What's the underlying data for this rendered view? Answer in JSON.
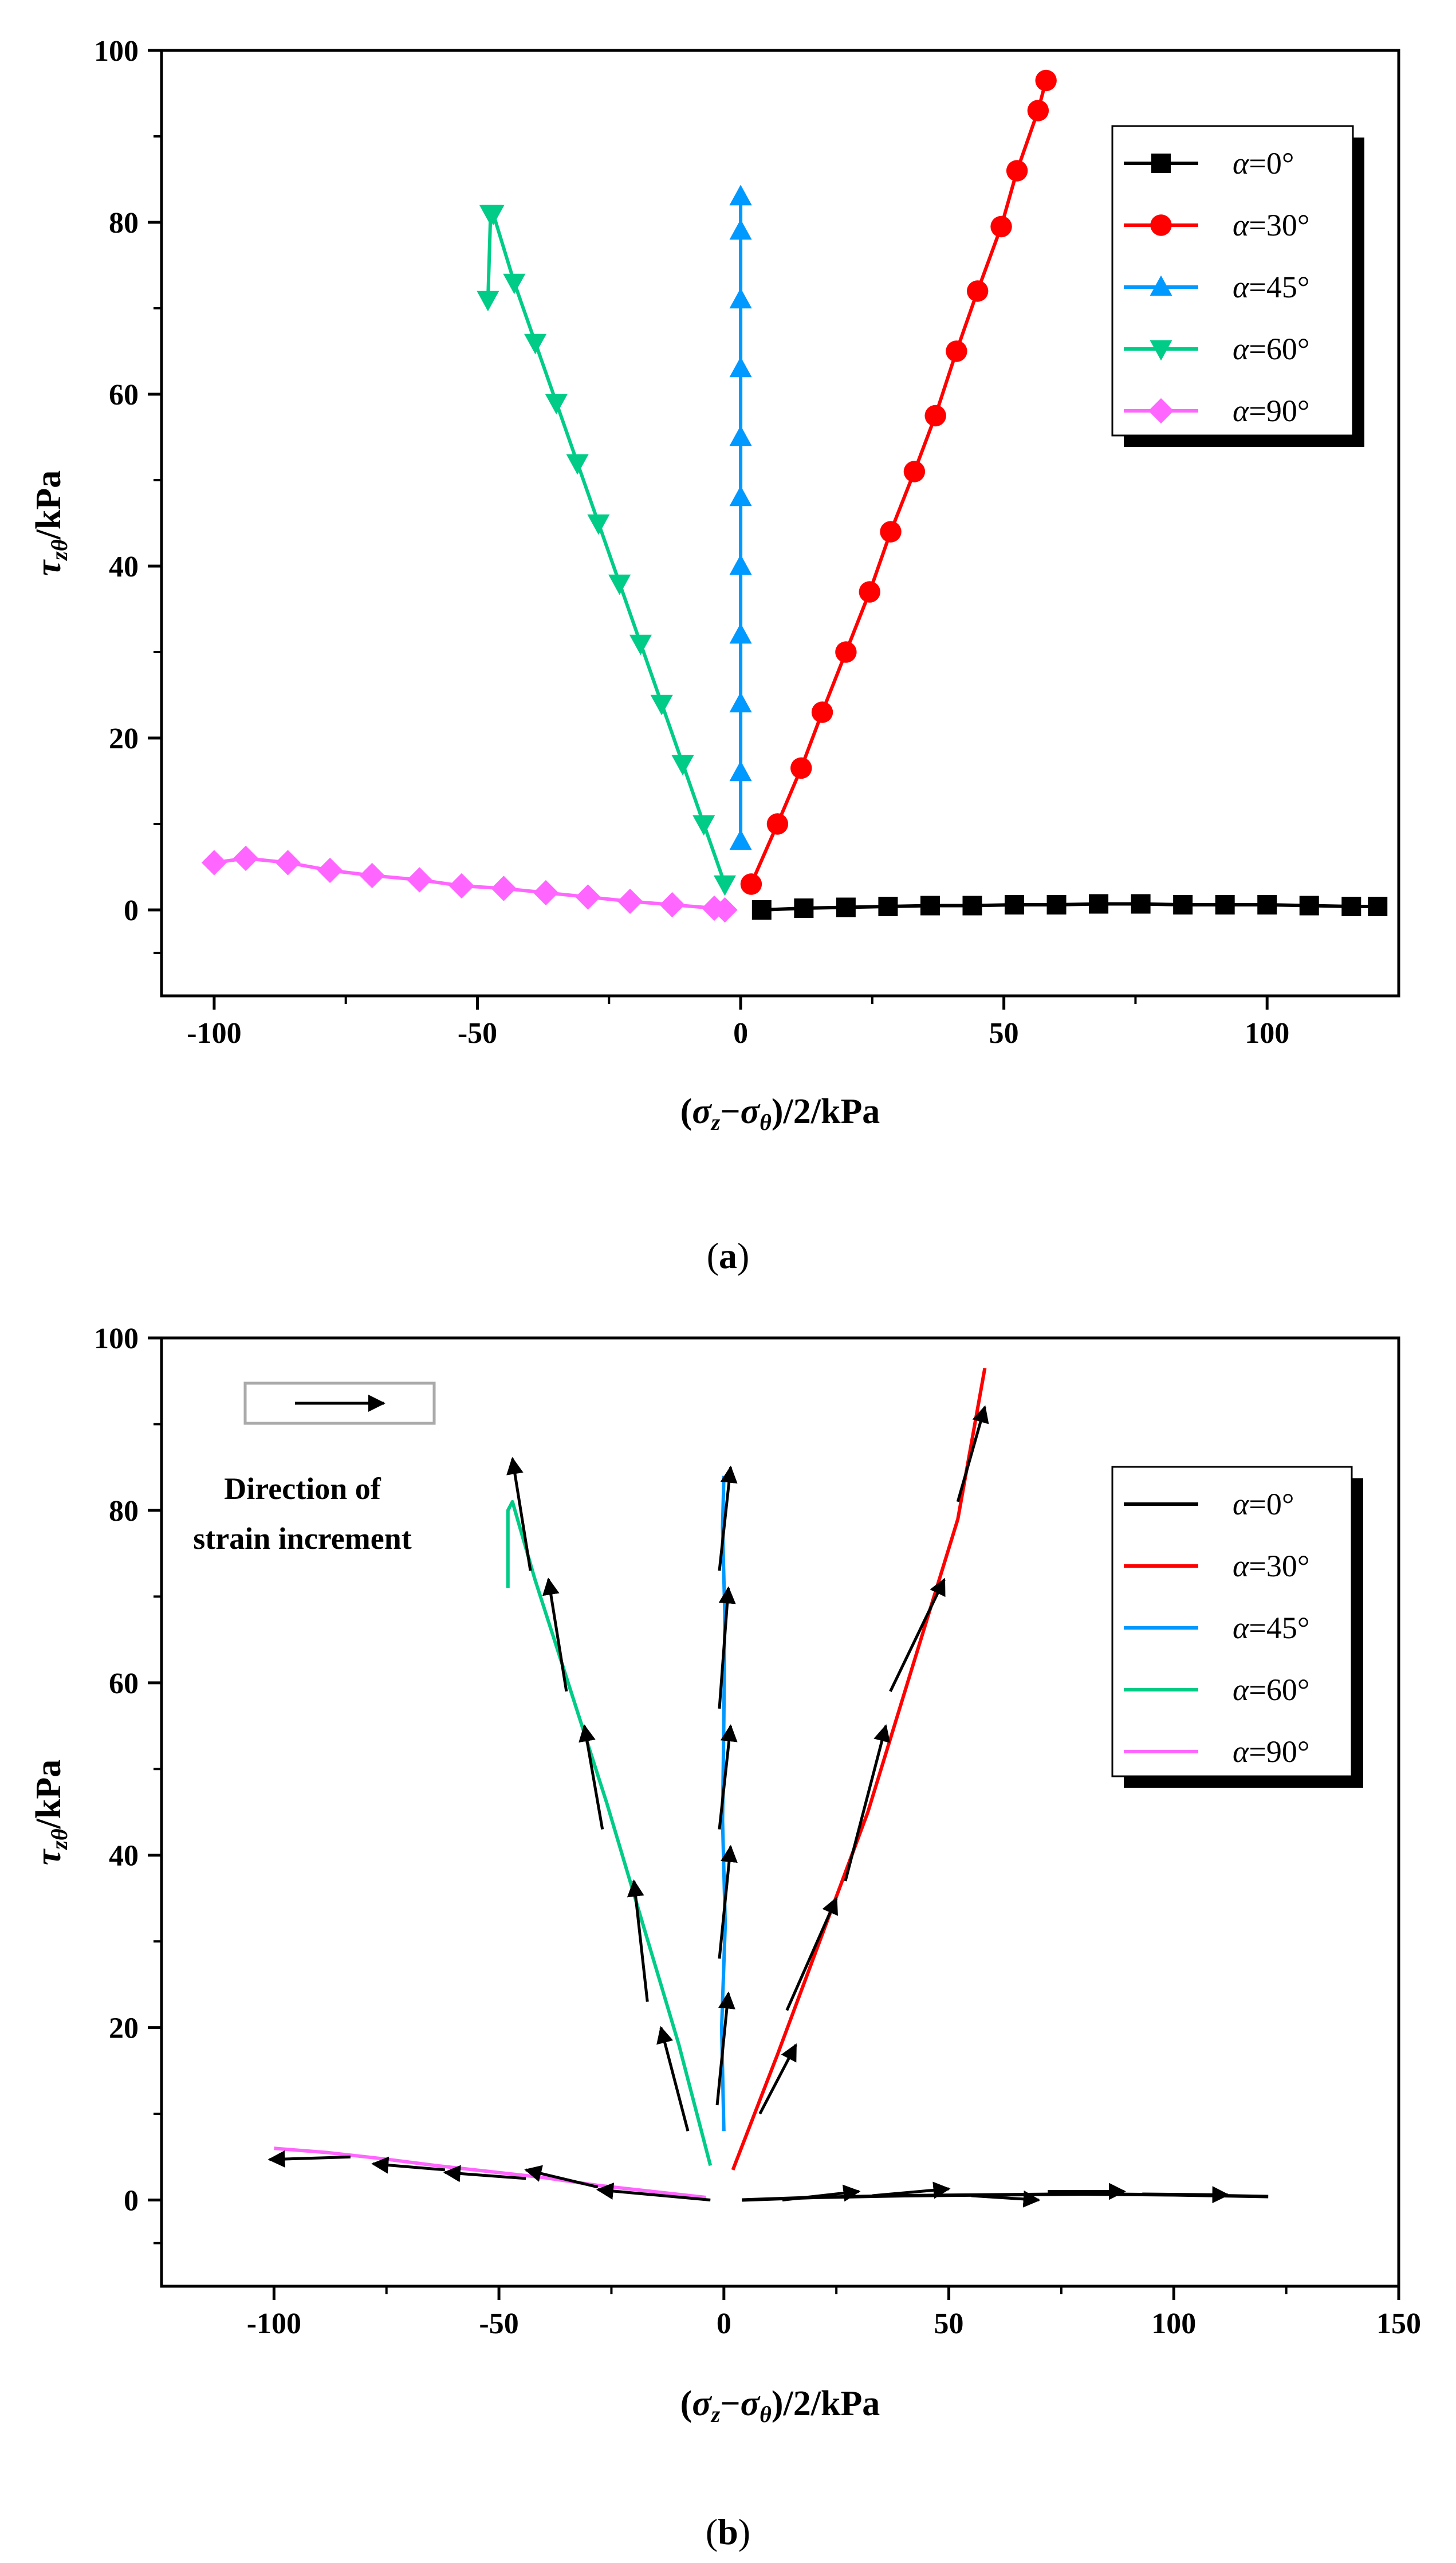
{
  "chart_data": [
    {
      "type": "line",
      "panel": "(a)",
      "panel_letter": "a",
      "xlabel": "(σz−σθ)/2/kPa",
      "ylabel": "τzθ/kPa",
      "xlim": [
        -110,
        125
      ],
      "ylim": [
        -10,
        100
      ],
      "xticks": [
        -100,
        -50,
        0,
        50,
        100
      ],
      "yticks": [
        0,
        20,
        40,
        60,
        80,
        100
      ],
      "legend_position": "top-right",
      "series": [
        {
          "name": "α=0°",
          "greek": "α",
          "rest": "=0°",
          "color": "#000000",
          "marker": "square",
          "x": [
            4,
            12,
            20,
            28,
            36,
            44,
            52,
            60,
            68,
            76,
            84,
            92,
            100,
            108,
            116,
            121
          ],
          "y": [
            0,
            0.2,
            0.3,
            0.4,
            0.5,
            0.5,
            0.6,
            0.6,
            0.7,
            0.7,
            0.6,
            0.6,
            0.6,
            0.5,
            0.4,
            0.4
          ]
        },
        {
          "name": "α=30°",
          "greek": "α",
          "rest": "=30°",
          "color": "#ff0000",
          "marker": "circle",
          "x": [
            2,
            7,
            11.5,
            15.5,
            20,
            24.5,
            28.5,
            33,
            37,
            41,
            45,
            49.5,
            52.5,
            56.5,
            58
          ],
          "y": [
            3,
            10,
            16.5,
            23,
            30,
            37,
            44,
            51,
            57.5,
            65,
            72,
            79.5,
            86,
            93,
            96.5
          ]
        },
        {
          "name": "α=45°",
          "greek": "α",
          "rest": "=45°",
          "color": "#0099ff",
          "marker": "triangle-up",
          "x": [
            0,
            0,
            0,
            0,
            0,
            0,
            0,
            0,
            0,
            0,
            0,
            0
          ],
          "y": [
            8,
            16,
            24,
            32,
            40,
            48,
            55,
            63,
            71,
            79,
            83,
            83
          ]
        },
        {
          "name": "α=60°",
          "greek": "α",
          "rest": "=60°",
          "color": "#00cc88",
          "marker": "triangle-down",
          "x": [
            -48,
            -47.5,
            -47,
            -43,
            -39,
            -35,
            -31,
            -27,
            -23,
            -19,
            -15,
            -11,
            -7,
            -3
          ],
          "y": [
            71,
            81,
            81,
            73,
            66,
            59,
            52,
            45,
            38,
            31,
            24,
            17,
            10,
            3
          ]
        },
        {
          "name": "α=90°",
          "greek": "α",
          "rest": "=90°",
          "color": "#ff66ff",
          "marker": "diamond",
          "x": [
            -100,
            -94,
            -86,
            -78,
            -70,
            -61,
            -53,
            -45,
            -37,
            -29,
            -21,
            -13,
            -5,
            -3
          ],
          "y": [
            5.5,
            6,
            5.5,
            4.6,
            4,
            3.5,
            2.8,
            2.5,
            2,
            1.5,
            1.0,
            0.6,
            0.2,
            0
          ]
        }
      ]
    },
    {
      "type": "line",
      "panel": "(b)",
      "panel_letter": "b",
      "xlabel": "(σz−σθ)/2/kPa",
      "ylabel": "τzθ/kPa",
      "xlim": [
        -125,
        150
      ],
      "ylim": [
        -10,
        100
      ],
      "xticks": [
        -100,
        -50,
        0,
        50,
        100,
        150
      ],
      "yticks": [
        0,
        20,
        40,
        60,
        80,
        100
      ],
      "legend_position": "right",
      "annotation": {
        "line1": "Direction of",
        "line2": "strain increment"
      },
      "series": [
        {
          "name": "α=0°",
          "greek": "α",
          "rest": "=0°",
          "color": "#000000",
          "x": [
            4,
            20,
            40,
            60,
            80,
            100,
            121
          ],
          "y": [
            0,
            0.3,
            0.5,
            0.6,
            0.7,
            0.6,
            0.4
          ]
        },
        {
          "name": "α=30°",
          "greek": "α",
          "rest": "=30°",
          "color": "#ff0000",
          "x": [
            2,
            12,
            22,
            32,
            42,
            52,
            58
          ],
          "y": [
            3.5,
            17,
            31,
            45,
            62,
            79,
            96.5
          ]
        },
        {
          "name": "α=45°",
          "greek": "α",
          "rest": "=45°",
          "color": "#0099ff",
          "x": [
            0,
            -0.5,
            0.3,
            -0.3,
            0,
            0.2,
            -0.3,
            0
          ],
          "y": [
            8,
            20,
            32,
            44,
            56,
            68,
            78,
            84
          ]
        },
        {
          "name": "α=60°",
          "greek": "α",
          "rest": "=60°",
          "color": "#00cc88",
          "x": [
            -48,
            -48,
            -47,
            -42,
            -34,
            -26,
            -18,
            -10,
            -3
          ],
          "y": [
            71,
            80,
            81,
            72,
            59,
            46,
            32,
            18,
            4
          ]
        },
        {
          "name": "α=90°",
          "greek": "α",
          "rest": "=90°",
          "color": "#ff66ff",
          "x": [
            -100,
            -88,
            -76,
            -64,
            -52,
            -40,
            -28,
            -16,
            -4
          ],
          "y": [
            6,
            5.5,
            4.8,
            4,
            3.3,
            2.6,
            1.7,
            1,
            0.3
          ]
        }
      ],
      "arrows": [
        {
          "from": [
            -3,
            0
          ],
          "to": [
            -28,
            1.2
          ]
        },
        {
          "from": [
            -28,
            1.5
          ],
          "to": [
            -44,
            3.5
          ]
        },
        {
          "from": [
            -44,
            2.5
          ],
          "to": [
            -62,
            3.2
          ]
        },
        {
          "from": [
            -62,
            3.5
          ],
          "to": [
            -78,
            4.2
          ]
        },
        {
          "from": [
            -83,
            5
          ],
          "to": [
            -101,
            4.7
          ]
        },
        {
          "from": [
            -8,
            8
          ],
          "to": [
            -14,
            20
          ]
        },
        {
          "from": [
            -17,
            23
          ],
          "to": [
            -20,
            37
          ]
        },
        {
          "from": [
            -27,
            43
          ],
          "to": [
            -31,
            55
          ]
        },
        {
          "from": [
            -35,
            59
          ],
          "to": [
            -39,
            72
          ]
        },
        {
          "from": [
            -43,
            73
          ],
          "to": [
            -47,
            86
          ]
        },
        {
          "from": [
            -1.5,
            11
          ],
          "to": [
            1,
            24
          ]
        },
        {
          "from": [
            -1,
            28
          ],
          "to": [
            1.5,
            41
          ]
        },
        {
          "from": [
            -1,
            43
          ],
          "to": [
            1.5,
            55
          ]
        },
        {
          "from": [
            -1,
            57
          ],
          "to": [
            1,
            71
          ]
        },
        {
          "from": [
            -1,
            73
          ],
          "to": [
            1.5,
            85
          ]
        },
        {
          "from": [
            8,
            10
          ],
          "to": [
            16,
            18
          ]
        },
        {
          "from": [
            14,
            22
          ],
          "to": [
            25,
            35
          ]
        },
        {
          "from": [
            27,
            37
          ],
          "to": [
            36,
            55
          ]
        },
        {
          "from": [
            37,
            59
          ],
          "to": [
            49,
            72
          ]
        },
        {
          "from": [
            52,
            81
          ],
          "to": [
            58,
            92
          ]
        },
        {
          "from": [
            13,
            0
          ],
          "to": [
            30,
            1
          ]
        },
        {
          "from": [
            33,
            0.5
          ],
          "to": [
            50,
            1.3
          ]
        },
        {
          "from": [
            55,
            0.5
          ],
          "to": [
            70,
            0
          ]
        },
        {
          "from": [
            72,
            1
          ],
          "to": [
            89,
            1
          ]
        },
        {
          "from": [
            93,
            0.7
          ],
          "to": [
            112,
            0.6
          ]
        }
      ]
    }
  ]
}
